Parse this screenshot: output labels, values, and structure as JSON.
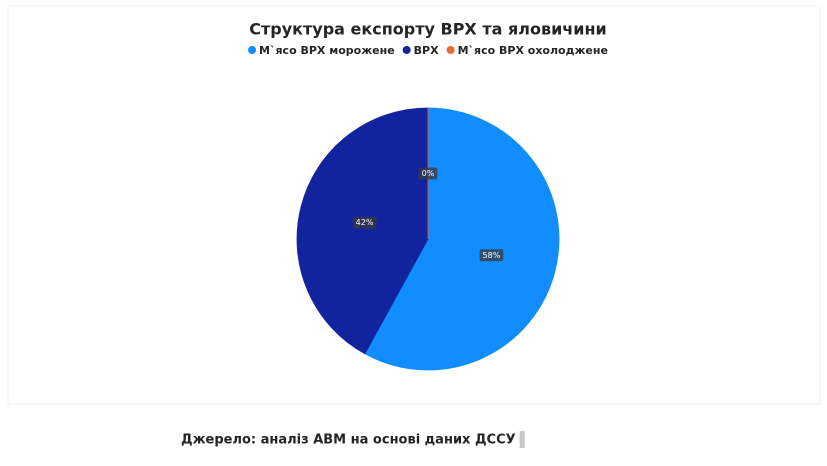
{
  "chart_data": {
    "type": "pie",
    "title": "Структура експорту ВРХ та яловичини",
    "series": [
      {
        "name": "М`ясо ВРХ морожене",
        "color": "#118dff",
        "values": [
          58
        ],
        "value_labels": [
          "58%"
        ]
      },
      {
        "name": "ВРХ",
        "color": "#12239e",
        "values": [
          42
        ],
        "value_labels": [
          "42%"
        ]
      },
      {
        "name": "М`ясо ВРХ охолоджене",
        "color": "#e66c37",
        "values": [
          0
        ],
        "value_labels": [
          "0%"
        ]
      }
    ],
    "legend": "top",
    "source": "Джерело: аналіз АВМ на основі даних ДССУ"
  }
}
